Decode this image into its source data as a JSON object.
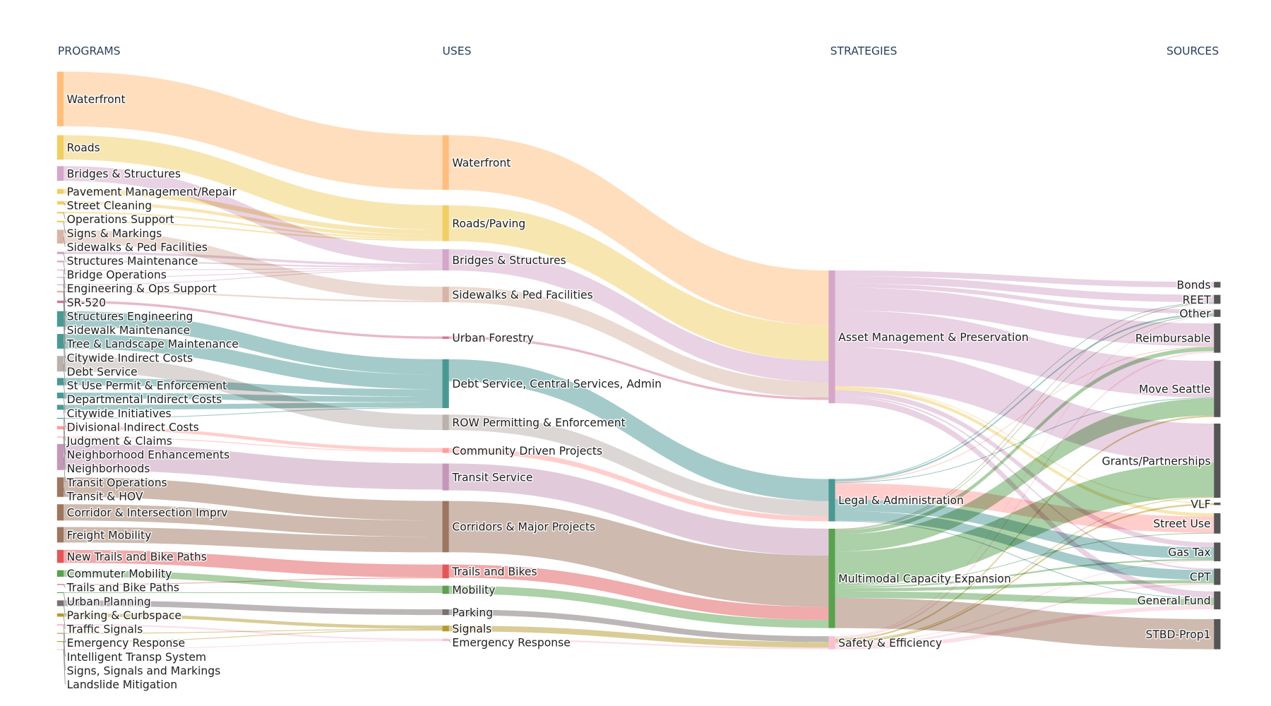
{
  "chart_data": {
    "type": "sankey",
    "columns": [
      "PROGRAMS",
      "USES",
      "STRATEGIES",
      "SOURCES"
    ],
    "nodes": [
      {
        "label": "Waterfront",
        "column": 0,
        "color": "#ffbe7d"
      },
      {
        "label": "Roads",
        "column": 0,
        "color": "#f1ce63"
      },
      {
        "label": "Bridges & Structures",
        "column": 0,
        "color": "#d4a6c8"
      },
      {
        "label": "Pavement Management/Repair",
        "column": 0,
        "color": "#f1ce63"
      },
      {
        "label": "Street Cleaning",
        "column": 0,
        "color": "#f1ce63"
      },
      {
        "label": "Operations Support",
        "column": 0,
        "color": "#f1ce63"
      },
      {
        "label": "Signs & Markings",
        "column": 0,
        "color": "#f1ce63"
      },
      {
        "label": "Sidewalks & Ped Facilities",
        "column": 0,
        "color": "#d7b5a6"
      },
      {
        "label": "Structures Maintenance",
        "column": 0,
        "color": "#d4a6c8"
      },
      {
        "label": "Bridge Operations",
        "column": 0,
        "color": "#d4a6c8"
      },
      {
        "label": "Engineering & Ops Support",
        "column": 0,
        "color": "#d4a6c8"
      },
      {
        "label": "SR-520",
        "column": 0,
        "color": "#d4a6c8"
      },
      {
        "label": "Structures Engineering",
        "column": 0,
        "color": "#d4a6c8"
      },
      {
        "label": "Sidewalk Maintenance",
        "column": 0,
        "color": "#d7b5a6"
      },
      {
        "label": "Tree & Landscape Maintenance",
        "column": 0,
        "color": "#d37295"
      },
      {
        "label": "Citywide Indirect Costs",
        "column": 0,
        "color": "#499894"
      },
      {
        "label": "Debt Service",
        "column": 0,
        "color": "#499894"
      },
      {
        "label": "St Use Permit & Enforcement",
        "column": 0,
        "color": "#bab0ac"
      },
      {
        "label": "Departmental Indirect Costs",
        "column": 0,
        "color": "#499894"
      },
      {
        "label": "Citywide Initiatives",
        "column": 0,
        "color": "#499894"
      },
      {
        "label": "Divisional Indirect Costs",
        "column": 0,
        "color": "#499894"
      },
      {
        "label": "Judgment & Claims",
        "column": 0,
        "color": "#499894"
      },
      {
        "label": "Neighborhood Enhancements",
        "column": 0,
        "color": "#ff9d9a"
      },
      {
        "label": "Neighborhoods",
        "column": 0,
        "color": "#ff9d9a"
      },
      {
        "label": "Transit Operations",
        "column": 0,
        "color": "#c497b8"
      },
      {
        "label": "Transit & HOV",
        "column": 0,
        "color": "#9d7660"
      },
      {
        "label": "Corridor & Intersection Imprv",
        "column": 0,
        "color": "#9d7660"
      },
      {
        "label": "Freight Mobility",
        "column": 0,
        "color": "#9d7660"
      },
      {
        "label": "New Trails and Bike Paths",
        "column": 0,
        "color": "#e15759"
      },
      {
        "label": "Commuter Mobility",
        "column": 0,
        "color": "#59a14f"
      },
      {
        "label": "Trails and Bike Paths",
        "column": 0,
        "color": "#e15759"
      },
      {
        "label": "Urban Planning",
        "column": 0,
        "color": "#59a14f"
      },
      {
        "label": "Parking & Curbspace",
        "column": 0,
        "color": "#79706e"
      },
      {
        "label": "Traffic Signals",
        "column": 0,
        "color": "#b6992d"
      },
      {
        "label": "Emergency Response",
        "column": 0,
        "color": "#fabfd2"
      },
      {
        "label": "Intelligent Transp System",
        "column": 0,
        "color": "#b6992d"
      },
      {
        "label": "Signs, Signals and Markings",
        "column": 0,
        "color": "#b6992d"
      },
      {
        "label": "Landslide Mitigation",
        "column": 0,
        "color": "#fabfd2"
      },
      {
        "label": "Waterfront",
        "column": 1,
        "color": "#ffbe7d"
      },
      {
        "label": "Roads/Paving",
        "column": 1,
        "color": "#f1ce63"
      },
      {
        "label": "Bridges & Structures",
        "column": 1,
        "color": "#d4a6c8"
      },
      {
        "label": "Sidewalks & Ped Facilities",
        "column": 1,
        "color": "#d7b5a6"
      },
      {
        "label": "Urban Forestry",
        "column": 1,
        "color": "#d37295"
      },
      {
        "label": "Debt Service, Central Services, Admin",
        "column": 1,
        "color": "#499894"
      },
      {
        "label": "ROW Permitting & Enforcement",
        "column": 1,
        "color": "#bab0ac"
      },
      {
        "label": "Community Driven Projects",
        "column": 1,
        "color": "#ff9d9a"
      },
      {
        "label": "Transit Service",
        "column": 1,
        "color": "#c497b8"
      },
      {
        "label": "Corridors & Major Projects",
        "column": 1,
        "color": "#9d7660"
      },
      {
        "label": "Trails and Bikes",
        "column": 1,
        "color": "#e15759"
      },
      {
        "label": "Mobility",
        "column": 1,
        "color": "#59a14f"
      },
      {
        "label": "Parking",
        "column": 1,
        "color": "#79706e"
      },
      {
        "label": "Signals",
        "column": 1,
        "color": "#b6992d"
      },
      {
        "label": "Emergency Response",
        "column": 1,
        "color": "#fabfd2"
      },
      {
        "label": "Asset Management & Preservation",
        "column": 2,
        "color": "#d4a6c8"
      },
      {
        "label": "Legal & Administration",
        "column": 2,
        "color": "#499894"
      },
      {
        "label": "Multimodal Capacity Expansion",
        "column": 2,
        "color": "#59a14f"
      },
      {
        "label": "Safety & Efficiency",
        "column": 2,
        "color": "#fabfd2"
      },
      {
        "label": "Bonds",
        "column": 3,
        "color": "#555555"
      },
      {
        "label": "REET",
        "column": 3,
        "color": "#555555"
      },
      {
        "label": "Other",
        "column": 3,
        "color": "#555555"
      },
      {
        "label": "Reimbursable",
        "column": 3,
        "color": "#555555"
      },
      {
        "label": "Move Seattle",
        "column": 3,
        "color": "#555555"
      },
      {
        "label": "Grants/Partnerships",
        "column": 3,
        "color": "#555555"
      },
      {
        "label": "VLF",
        "column": 3,
        "color": "#555555"
      },
      {
        "label": "Street Use",
        "column": 3,
        "color": "#555555"
      },
      {
        "label": "Gas Tax",
        "column": 3,
        "color": "#555555"
      },
      {
        "label": "CPT",
        "column": 3,
        "color": "#555555"
      },
      {
        "label": "General Fund",
        "column": 3,
        "color": "#555555"
      },
      {
        "label": "STBD-Prop1",
        "column": 3,
        "color": "#555555"
      }
    ],
    "links": [
      {
        "source": 0,
        "target": 38,
        "value": 67
      },
      {
        "source": 1,
        "target": 39,
        "value": 30
      },
      {
        "source": 2,
        "target": 40,
        "value": 18
      },
      {
        "source": 3,
        "target": 39,
        "value": 6
      },
      {
        "source": 4,
        "target": 39,
        "value": 4
      },
      {
        "source": 5,
        "target": 39,
        "value": 2
      },
      {
        "source": 6,
        "target": 39,
        "value": 2
      },
      {
        "source": 7,
        "target": 41,
        "value": 17
      },
      {
        "source": 8,
        "target": 40,
        "value": 3
      },
      {
        "source": 9,
        "target": 40,
        "value": 2
      },
      {
        "source": 10,
        "target": 40,
        "value": 1
      },
      {
        "source": 11,
        "target": 40,
        "value": 1
      },
      {
        "source": 12,
        "target": 40,
        "value": 1
      },
      {
        "source": 13,
        "target": 41,
        "value": 2
      },
      {
        "source": 14,
        "target": 42,
        "value": 3
      },
      {
        "source": 15,
        "target": 43,
        "value": 19
      },
      {
        "source": 16,
        "target": 43,
        "value": 18
      },
      {
        "source": 17,
        "target": 44,
        "value": 19
      },
      {
        "source": 18,
        "target": 43,
        "value": 9
      },
      {
        "source": 19,
        "target": 43,
        "value": 7
      },
      {
        "source": 20,
        "target": 43,
        "value": 6
      },
      {
        "source": 21,
        "target": 43,
        "value": 1
      },
      {
        "source": 22,
        "target": 45,
        "value": 4
      },
      {
        "source": 23,
        "target": 45,
        "value": 1
      },
      {
        "source": 24,
        "target": 46,
        "value": 32
      },
      {
        "source": 25,
        "target": 47,
        "value": 24
      },
      {
        "source": 26,
        "target": 47,
        "value": 20
      },
      {
        "source": 27,
        "target": 47,
        "value": 19
      },
      {
        "source": 28,
        "target": 48,
        "value": 16
      },
      {
        "source": 29,
        "target": 49,
        "value": 8
      },
      {
        "source": 30,
        "target": 48,
        "value": 1
      },
      {
        "source": 31,
        "target": 49,
        "value": 1
      },
      {
        "source": 32,
        "target": 50,
        "value": 7
      },
      {
        "source": 33,
        "target": 51,
        "value": 4
      },
      {
        "source": 34,
        "target": 52,
        "value": 2
      },
      {
        "source": 35,
        "target": 51,
        "value": 1
      },
      {
        "source": 36,
        "target": 51,
        "value": 1
      },
      {
        "source": 37,
        "target": 52,
        "value": 1
      },
      {
        "source": 38,
        "target": 53,
        "value": 67
      },
      {
        "source": 39,
        "target": 53,
        "value": 44
      },
      {
        "source": 40,
        "target": 53,
        "value": 26
      },
      {
        "source": 41,
        "target": 53,
        "value": 19
      },
      {
        "source": 42,
        "target": 53,
        "value": 3
      },
      {
        "source": 43,
        "target": 54,
        "value": 27
      },
      {
        "source": 44,
        "target": 54,
        "value": 19
      },
      {
        "source": 45,
        "target": 54,
        "value": 6
      },
      {
        "source": 46,
        "target": 55,
        "value": 33
      },
      {
        "source": 47,
        "target": 55,
        "value": 63
      },
      {
        "source": 48,
        "target": 55,
        "value": 16
      },
      {
        "source": 49,
        "target": 55,
        "value": 10
      },
      {
        "source": 50,
        "target": 56,
        "value": 7
      },
      {
        "source": 51,
        "target": 56,
        "value": 7
      },
      {
        "source": 52,
        "target": 56,
        "value": 2
      },
      {
        "source": 53,
        "target": 57,
        "value": 7,
        "color": "#d4a6c8"
      },
      {
        "source": 53,
        "target": 58,
        "value": 9,
        "color": "#d4a6c8"
      },
      {
        "source": 53,
        "target": 59,
        "value": 5,
        "color": "#d4a6c8"
      },
      {
        "source": 53,
        "target": 60,
        "value": 28,
        "color": "#d4a6c8"
      },
      {
        "source": 53,
        "target": 61,
        "value": 45,
        "color": "#d4a6c8"
      },
      {
        "source": 53,
        "target": 62,
        "value": 48,
        "color": "#d4a6c8"
      },
      {
        "source": 53,
        "target": 63,
        "value": 1,
        "color": "#f1ce63"
      },
      {
        "source": 53,
        "target": 64,
        "value": 4,
        "color": "#f1ce63"
      },
      {
        "source": 53,
        "target": 65,
        "value": 6,
        "color": "#d4a6c8"
      },
      {
        "source": 53,
        "target": 66,
        "value": 2,
        "color": "#d4a6c8"
      },
      {
        "source": 53,
        "target": 67,
        "value": 8,
        "color": "#d4a6c8"
      },
      {
        "source": 54,
        "target": 58,
        "value": 1,
        "color": "#499894"
      },
      {
        "source": 54,
        "target": 59,
        "value": 2,
        "color": "#499894"
      },
      {
        "source": 54,
        "target": 60,
        "value": 1,
        "color": "#ff9d9a"
      },
      {
        "source": 54,
        "target": 61,
        "value": 1,
        "color": "#499894"
      },
      {
        "source": 54,
        "target": 64,
        "value": 20,
        "color": "#ff9d9a"
      },
      {
        "source": 54,
        "target": 65,
        "value": 14,
        "color": "#499894"
      },
      {
        "source": 54,
        "target": 66,
        "value": 12,
        "color": "#499894"
      },
      {
        "source": 54,
        "target": 67,
        "value": 1,
        "color": "#499894"
      },
      {
        "source": 55,
        "target": 58,
        "value": 1,
        "color": "#9d7660"
      },
      {
        "source": 55,
        "target": 59,
        "value": 1,
        "color": "#59a14f"
      },
      {
        "source": 55,
        "target": 60,
        "value": 5,
        "color": "#59a14f"
      },
      {
        "source": 55,
        "target": 61,
        "value": 21,
        "color": "#59a14f"
      },
      {
        "source": 55,
        "target": 62,
        "value": 42,
        "color": "#59a14f"
      },
      {
        "source": 55,
        "target": 64,
        "value": 1,
        "color": "#59a14f"
      },
      {
        "source": 55,
        "target": 65,
        "value": 2,
        "color": "#59a14f"
      },
      {
        "source": 55,
        "target": 66,
        "value": 4,
        "color": "#59a14f"
      },
      {
        "source": 55,
        "target": 67,
        "value": 8,
        "color": "#59a14f"
      },
      {
        "source": 55,
        "target": 68,
        "value": 37,
        "color": "#9d7660"
      },
      {
        "source": 56,
        "target": 59,
        "value": 1,
        "color": "#fabfd2"
      },
      {
        "source": 56,
        "target": 60,
        "value": 2,
        "color": "#fabfd2"
      },
      {
        "source": 56,
        "target": 61,
        "value": 2,
        "color": "#b6992d"
      },
      {
        "source": 56,
        "target": 62,
        "value": 1,
        "color": "#b6992d"
      },
      {
        "source": 56,
        "target": 63,
        "value": 2,
        "color": "#b6992d"
      },
      {
        "source": 56,
        "target": 65,
        "value": 1,
        "color": "#fabfd2"
      },
      {
        "source": 56,
        "target": 66,
        "value": 2,
        "color": "#fabfd2"
      },
      {
        "source": 56,
        "target": 67,
        "value": 5,
        "color": "#fabfd2"
      }
    ]
  }
}
